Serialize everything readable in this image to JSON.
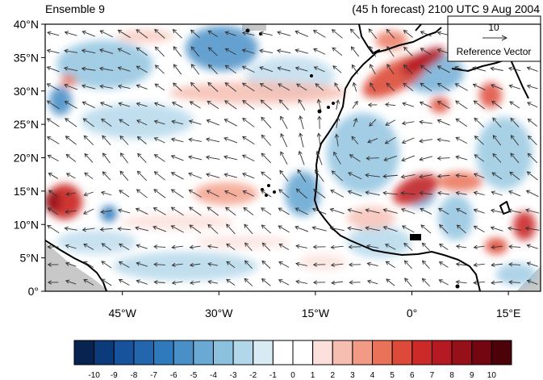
{
  "title_left": "Ensemble 9",
  "title_right": "(45 h forecast) 2100 UTC 9 Aug 2004",
  "map": {
    "lon_range": [
      -57,
      20
    ],
    "lat_range": [
      0,
      40
    ],
    "lat_ticks": [
      {
        "value": 40,
        "label": "40°N"
      },
      {
        "value": 35,
        "label": "35°N"
      },
      {
        "value": 30,
        "label": "30°N"
      },
      {
        "value": 25,
        "label": "25°N"
      },
      {
        "value": 20,
        "label": "20°N"
      },
      {
        "value": 15,
        "label": "15°N"
      },
      {
        "value": 10,
        "label": "10°N"
      },
      {
        "value": 5,
        "label": "5°N"
      },
      {
        "value": 0,
        "label": "0°"
      }
    ],
    "lon_ticks": [
      {
        "value": -45,
        "label": "45°W"
      },
      {
        "value": -30,
        "label": "30°W"
      },
      {
        "value": -15,
        "label": "15°W"
      },
      {
        "value": 0,
        "label": "0°"
      },
      {
        "value": 15,
        "label": "15°E"
      }
    ]
  },
  "reference_vector": {
    "value": "10",
    "label": "Reference Vector"
  },
  "colorbar": {
    "labels": [
      "-10",
      "-9",
      "-8",
      "-7",
      "-6",
      "-5",
      "-4",
      "-3",
      "-2",
      "-1",
      "0",
      "1",
      "2",
      "3",
      "4",
      "5",
      "6",
      "7",
      "8",
      "9",
      "10"
    ],
    "colors": [
      "#08234f",
      "#0b3b7a",
      "#16539c",
      "#2466ae",
      "#2f79bd",
      "#4a90c8",
      "#69a9d3",
      "#8cc1de",
      "#b2d6ea",
      "#d8ebf5",
      "#ffffff",
      "#ffffff",
      "#fbe0dc",
      "#f6bdb1",
      "#f29a85",
      "#ea7258",
      "#dd4a39",
      "#cb2a29",
      "#b51a22",
      "#951019",
      "#730611",
      "#4d020a"
    ]
  },
  "colors": {
    "land_gray": "#c8c8c8",
    "coast": "#000000",
    "arrow": "#333333"
  }
}
